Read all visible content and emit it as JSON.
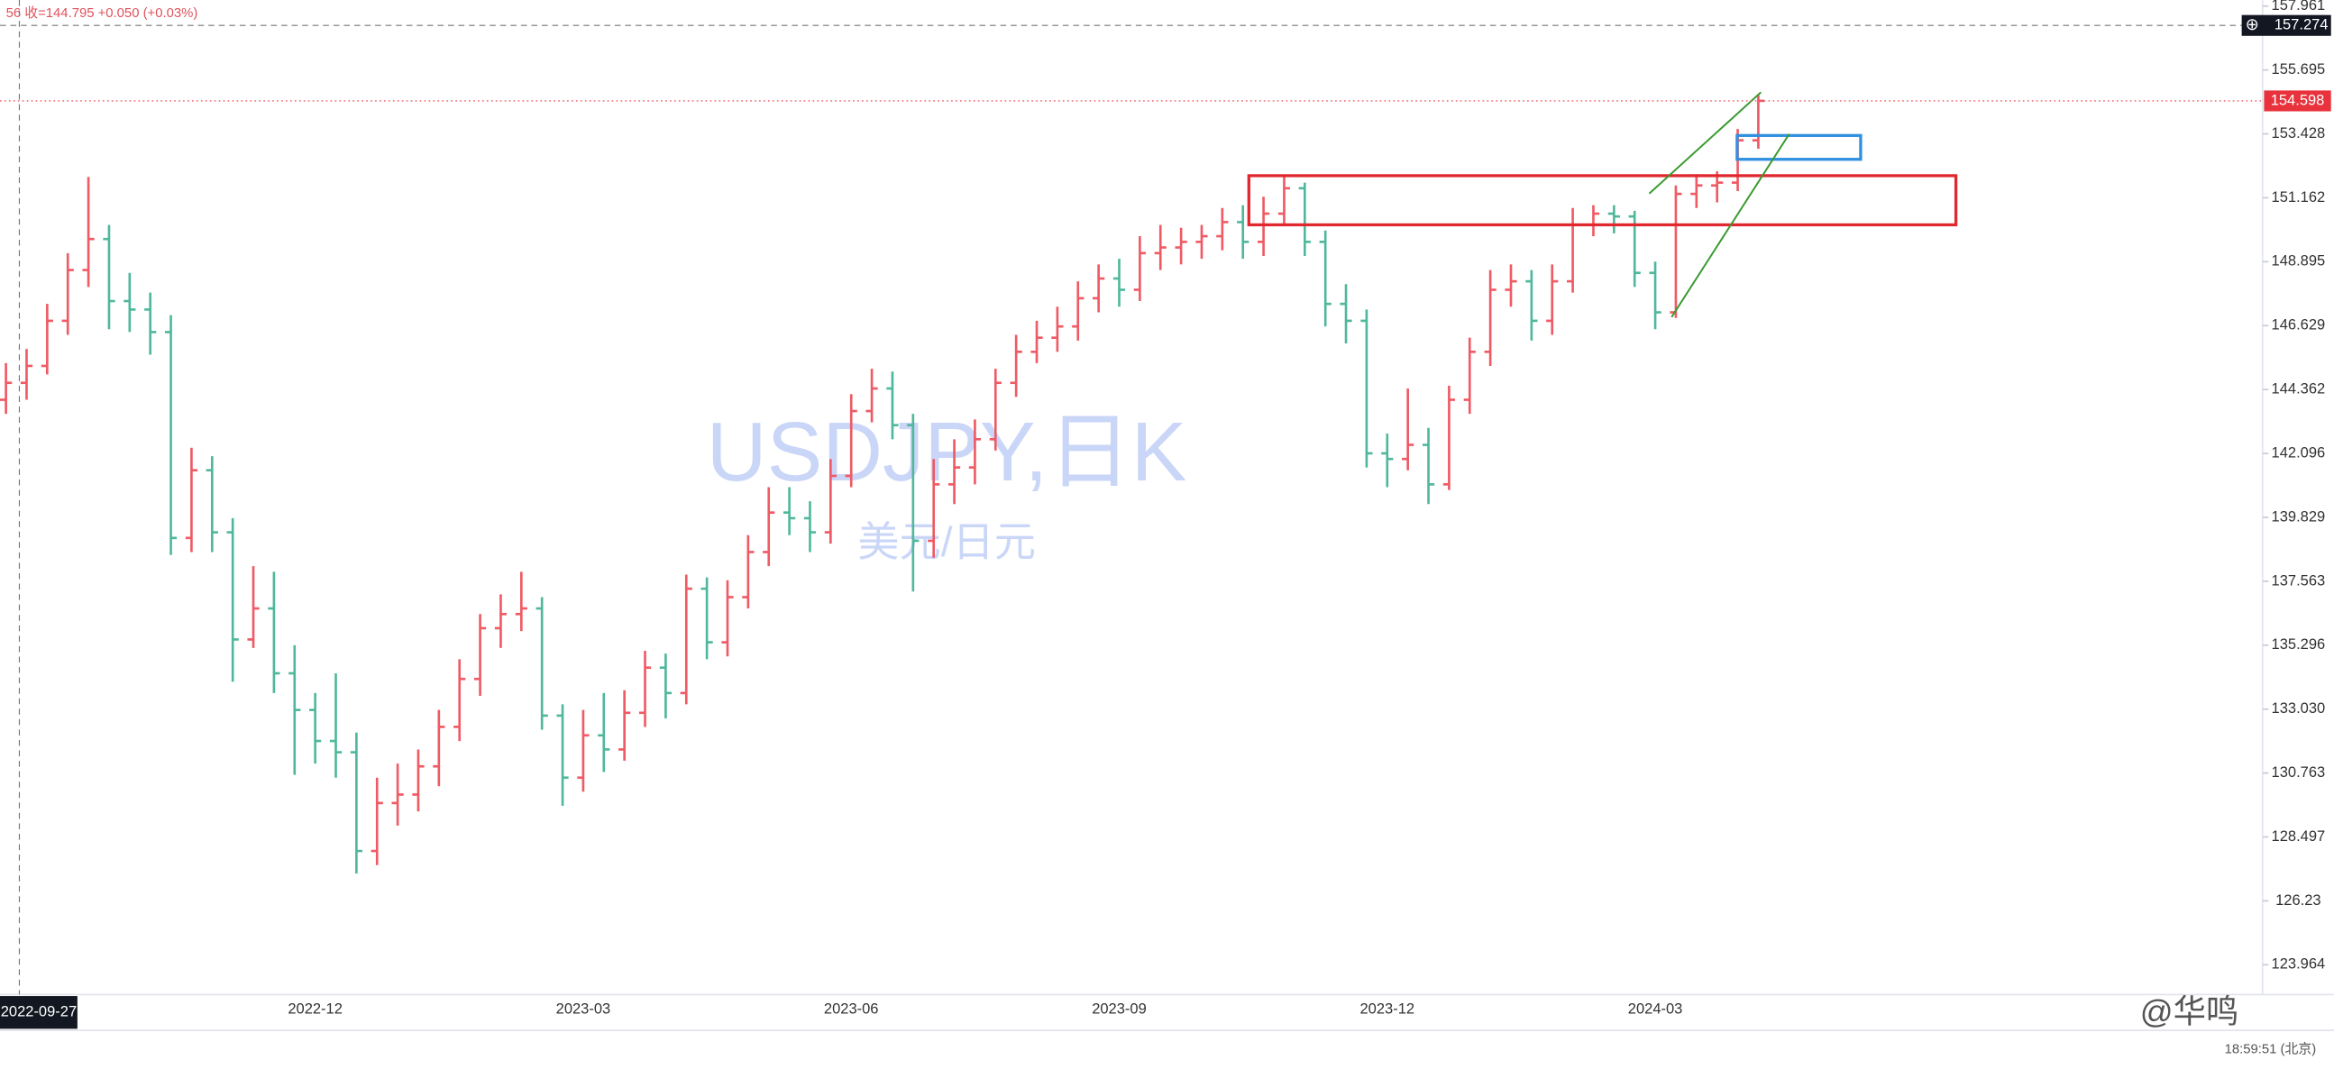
{
  "chart_data": {
    "type": "ohlc",
    "title": "USDJPY,日K",
    "subtitle": "美元/日元",
    "header": "56 收=144.795 +0.050 (+0.03%)",
    "up_color": "#ef5a64",
    "down_color": "#4fb89c",
    "categories": [
      null,
      null,
      null,
      null,
      null,
      null,
      null,
      null,
      null,
      null,
      null,
      null,
      null,
      null,
      null,
      "2022-12",
      null,
      null,
      null,
      null,
      null,
      null,
      null,
      null,
      null,
      null,
      null,
      null,
      "2023-03",
      null,
      null,
      null,
      null,
      null,
      null,
      null,
      null,
      null,
      null,
      null,
      null,
      "2023-06",
      null,
      null,
      null,
      null,
      null,
      null,
      null,
      null,
      null,
      null,
      null,
      null,
      "2023-09",
      null,
      null,
      null,
      null,
      null,
      null,
      null,
      null,
      null,
      null,
      null,
      null,
      "2023-12",
      null,
      null,
      null,
      null,
      null,
      null,
      null,
      null,
      null,
      null,
      null,
      null,
      "2024-03",
      null,
      null,
      null,
      null,
      null
    ],
    "open": [
      144.0,
      144.6,
      145.2,
      146.8,
      148.6,
      149.7,
      147.5,
      147.2,
      146.4,
      139.1,
      141.5,
      139.3,
      135.5,
      136.6,
      134.3,
      133.0,
      131.9,
      131.5,
      128.0,
      129.7,
      130.0,
      131.0,
      132.4,
      134.1,
      135.9,
      136.4,
      136.6,
      132.8,
      130.6,
      132.1,
      131.6,
      132.9,
      134.5,
      133.6,
      137.3,
      135.4,
      137.0,
      138.6,
      140.0,
      139.8,
      139.3,
      141.3,
      143.6,
      144.4,
      143.1,
      139.0,
      141.0,
      141.6,
      142.6,
      144.6,
      145.7,
      146.2,
      146.6,
      147.6,
      148.3,
      147.9,
      149.2,
      149.4,
      149.6,
      149.8,
      150.3,
      149.6,
      150.6,
      151.5,
      149.6,
      147.4,
      146.8,
      142.1,
      141.9,
      142.4,
      141.0,
      144.0,
      145.7,
      147.9,
      148.2,
      146.8,
      148.2,
      150.2,
      150.6,
      150.5,
      148.5,
      147.1,
      151.3,
      151.6,
      151.7,
      153.2
    ],
    "high": [
      145.3,
      145.8,
      147.4,
      149.2,
      151.9,
      150.2,
      148.5,
      147.8,
      147.0,
      142.3,
      142.0,
      139.8,
      138.1,
      137.9,
      135.3,
      133.6,
      134.3,
      132.2,
      130.6,
      131.1,
      131.6,
      133.0,
      134.8,
      136.4,
      137.1,
      137.9,
      137.0,
      133.2,
      133.0,
      133.6,
      133.7,
      135.1,
      135.0,
      137.8,
      137.7,
      137.6,
      139.2,
      140.9,
      140.9,
      140.4,
      141.9,
      144.2,
      145.1,
      145.0,
      143.5,
      141.9,
      142.6,
      143.3,
      145.1,
      146.3,
      146.8,
      147.3,
      148.2,
      148.8,
      149.0,
      149.8,
      150.2,
      150.1,
      150.2,
      150.8,
      150.9,
      151.2,
      151.9,
      151.7,
      150.0,
      148.1,
      147.2,
      142.8,
      144.4,
      143.0,
      144.5,
      146.2,
      148.6,
      148.8,
      148.6,
      148.8,
      150.8,
      150.9,
      150.9,
      150.7,
      148.9,
      151.6,
      152.0,
      152.1,
      153.6,
      154.8
    ],
    "low": [
      143.5,
      144.0,
      144.9,
      146.3,
      148.0,
      146.5,
      146.4,
      145.6,
      138.5,
      138.6,
      138.6,
      134.0,
      135.2,
      133.6,
      130.7,
      131.1,
      130.6,
      127.2,
      127.5,
      128.9,
      129.4,
      130.3,
      131.9,
      133.5,
      135.2,
      135.8,
      132.3,
      129.6,
      130.1,
      130.8,
      131.2,
      132.4,
      132.7,
      133.2,
      134.8,
      134.9,
      136.6,
      138.1,
      139.2,
      138.6,
      138.9,
      140.9,
      143.2,
      142.6,
      137.2,
      138.4,
      140.3,
      141.0,
      142.2,
      144.1,
      145.3,
      145.7,
      146.1,
      147.1,
      147.3,
      147.5,
      148.6,
      148.8,
      149.0,
      149.3,
      149.0,
      149.1,
      150.2,
      149.1,
      146.6,
      146.0,
      141.6,
      140.9,
      141.5,
      140.3,
      140.8,
      143.5,
      145.2,
      147.3,
      146.1,
      146.3,
      147.8,
      149.8,
      149.9,
      148.0,
      146.5,
      146.9,
      150.8,
      151.0,
      151.4,
      152.9
    ],
    "close": [
      144.6,
      145.2,
      146.8,
      148.6,
      149.7,
      147.5,
      147.2,
      146.4,
      139.1,
      141.5,
      139.3,
      135.5,
      136.6,
      134.3,
      133.0,
      131.9,
      131.5,
      128.0,
      129.7,
      130.0,
      131.0,
      132.4,
      134.1,
      135.9,
      136.4,
      136.6,
      132.8,
      130.6,
      132.1,
      131.6,
      132.9,
      134.5,
      133.6,
      137.3,
      135.4,
      137.0,
      138.6,
      140.0,
      139.8,
      139.3,
      141.3,
      143.6,
      144.4,
      143.1,
      139.0,
      141.0,
      141.6,
      142.6,
      144.6,
      145.7,
      146.2,
      146.6,
      147.6,
      148.3,
      147.9,
      149.2,
      149.4,
      149.6,
      149.8,
      150.3,
      149.6,
      150.6,
      151.5,
      149.6,
      147.4,
      146.8,
      142.1,
      141.9,
      142.4,
      141.0,
      144.0,
      145.7,
      147.9,
      148.2,
      146.8,
      148.2,
      150.2,
      150.6,
      150.5,
      148.5,
      147.1,
      151.3,
      151.6,
      151.7,
      153.2,
      154.6
    ],
    "ylim": [
      122.908,
      158.176
    ],
    "yticks": [
      157.961,
      155.695,
      153.428,
      151.162,
      148.895,
      146.629,
      144.362,
      142.096,
      139.829,
      137.563,
      135.296,
      {
        "value": 133.03,
        "label": "133.030"
      },
      130.763,
      128.497,
      126.23,
      123.964
    ],
    "last_price": 154.598,
    "crosshair": {
      "date": "2022-09-27",
      "price": 157.274
    }
  },
  "footer": {
    "logo": "@华鸣",
    "clock": "18:59:51 (北京)"
  }
}
